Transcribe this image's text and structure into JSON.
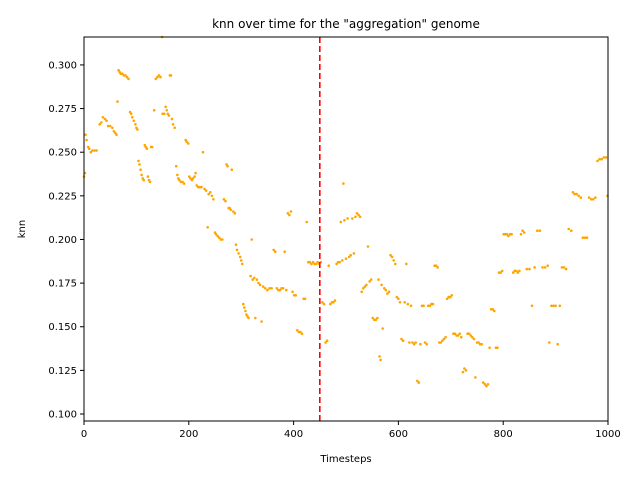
{
  "chart_data": {
    "type": "scatter",
    "title": "knn over time for the \"aggregation\" genome",
    "xlabel": "Timesteps",
    "ylabel": "knn",
    "xlim": [
      0,
      1000
    ],
    "ylim": [
      0.096,
      0.316
    ],
    "xticks": [
      "0",
      "200",
      "400",
      "600",
      "800",
      "1000"
    ],
    "yticks": [
      "0.100",
      "0.125",
      "0.150",
      "0.175",
      "0.200",
      "0.225",
      "0.250",
      "0.275",
      "0.300"
    ],
    "grid": false,
    "marker_color": "#ffa500",
    "vline": {
      "x": 450,
      "color": "#ff0000",
      "style": "dashed"
    },
    "points": [
      [
        0,
        0.236
      ],
      [
        2,
        0.238
      ],
      [
        3,
        0.26
      ],
      [
        5,
        0.257
      ],
      [
        8,
        0.253
      ],
      [
        10,
        0.252
      ],
      [
        13,
        0.25
      ],
      [
        16,
        0.251
      ],
      [
        20,
        0.251
      ],
      [
        24,
        0.251
      ],
      [
        30,
        0.266
      ],
      [
        33,
        0.267
      ],
      [
        36,
        0.27
      ],
      [
        40,
        0.269
      ],
      [
        43,
        0.268
      ],
      [
        46,
        0.265
      ],
      [
        50,
        0.265
      ],
      [
        54,
        0.264
      ],
      [
        57,
        0.262
      ],
      [
        60,
        0.261
      ],
      [
        62,
        0.26
      ],
      [
        64,
        0.279
      ],
      [
        66,
        0.297
      ],
      [
        68,
        0.296
      ],
      [
        70,
        0.295
      ],
      [
        73,
        0.295
      ],
      [
        76,
        0.294
      ],
      [
        79,
        0.294
      ],
      [
        82,
        0.293
      ],
      [
        85,
        0.292
      ],
      [
        88,
        0.273
      ],
      [
        90,
        0.272
      ],
      [
        92,
        0.27
      ],
      [
        95,
        0.268
      ],
      [
        98,
        0.266
      ],
      [
        100,
        0.264
      ],
      [
        102,
        0.263
      ],
      [
        104,
        0.245
      ],
      [
        106,
        0.243
      ],
      [
        108,
        0.24
      ],
      [
        110,
        0.237
      ],
      [
        112,
        0.235
      ],
      [
        114,
        0.234
      ],
      [
        116,
        0.254
      ],
      [
        118,
        0.253
      ],
      [
        120,
        0.252
      ],
      [
        122,
        0.236
      ],
      [
        124,
        0.234
      ],
      [
        126,
        0.233
      ],
      [
        128,
        0.253
      ],
      [
        130,
        0.253
      ],
      [
        134,
        0.274
      ],
      [
        137,
        0.292
      ],
      [
        140,
        0.293
      ],
      [
        143,
        0.294
      ],
      [
        146,
        0.293
      ],
      [
        149,
        0.316
      ],
      [
        150,
        0.272
      ],
      [
        153,
        0.272
      ],
      [
        156,
        0.276
      ],
      [
        158,
        0.274
      ],
      [
        160,
        0.272
      ],
      [
        162,
        0.271
      ],
      [
        164,
        0.294
      ],
      [
        166,
        0.294
      ],
      [
        168,
        0.269
      ],
      [
        170,
        0.266
      ],
      [
        173,
        0.264
      ],
      [
        176,
        0.242
      ],
      [
        178,
        0.237
      ],
      [
        180,
        0.235
      ],
      [
        182,
        0.234
      ],
      [
        185,
        0.233
      ],
      [
        188,
        0.233
      ],
      [
        191,
        0.232
      ],
      [
        194,
        0.257
      ],
      [
        196,
        0.256
      ],
      [
        199,
        0.255
      ],
      [
        201,
        0.236
      ],
      [
        203,
        0.235
      ],
      [
        206,
        0.234
      ],
      [
        208,
        0.235
      ],
      [
        211,
        0.236
      ],
      [
        213,
        0.238
      ],
      [
        215,
        0.231
      ],
      [
        218,
        0.23
      ],
      [
        221,
        0.23
      ],
      [
        224,
        0.23
      ],
      [
        227,
        0.25
      ],
      [
        230,
        0.229
      ],
      [
        233,
        0.228
      ],
      [
        236,
        0.207
      ],
      [
        238,
        0.226
      ],
      [
        241,
        0.227
      ],
      [
        244,
        0.225
      ],
      [
        247,
        0.223
      ],
      [
        250,
        0.204
      ],
      [
        252,
        0.203
      ],
      [
        255,
        0.202
      ],
      [
        258,
        0.201
      ],
      [
        261,
        0.2
      ],
      [
        264,
        0.2
      ],
      [
        267,
        0.223
      ],
      [
        270,
        0.222
      ],
      [
        272,
        0.243
      ],
      [
        274,
        0.242
      ],
      [
        276,
        0.218
      ],
      [
        278,
        0.218
      ],
      [
        280,
        0.217
      ],
      [
        282,
        0.24
      ],
      [
        285,
        0.216
      ],
      [
        288,
        0.215
      ],
      [
        290,
        0.197
      ],
      [
        292,
        0.194
      ],
      [
        295,
        0.192
      ],
      [
        298,
        0.19
      ],
      [
        300,
        0.188
      ],
      [
        302,
        0.186
      ],
      [
        304,
        0.163
      ],
      [
        306,
        0.161
      ],
      [
        308,
        0.159
      ],
      [
        310,
        0.157
      ],
      [
        312,
        0.156
      ],
      [
        314,
        0.155
      ],
      [
        318,
        0.179
      ],
      [
        320,
        0.2
      ],
      [
        322,
        0.177
      ],
      [
        325,
        0.178
      ],
      [
        327,
        0.155
      ],
      [
        330,
        0.177
      ],
      [
        333,
        0.175
      ],
      [
        336,
        0.174
      ],
      [
        339,
        0.153
      ],
      [
        342,
        0.173
      ],
      [
        346,
        0.172
      ],
      [
        350,
        0.171
      ],
      [
        354,
        0.172
      ],
      [
        358,
        0.172
      ],
      [
        362,
        0.194
      ],
      [
        365,
        0.193
      ],
      [
        368,
        0.172
      ],
      [
        371,
        0.171
      ],
      [
        374,
        0.171
      ],
      [
        377,
        0.172
      ],
      [
        380,
        0.172
      ],
      [
        383,
        0.193
      ],
      [
        386,
        0.171
      ],
      [
        389,
        0.215
      ],
      [
        392,
        0.214
      ],
      [
        395,
        0.216
      ],
      [
        398,
        0.17
      ],
      [
        401,
        0.168
      ],
      [
        404,
        0.168
      ],
      [
        407,
        0.148
      ],
      [
        410,
        0.147
      ],
      [
        413,
        0.147
      ],
      [
        416,
        0.146
      ],
      [
        419,
        0.166
      ],
      [
        422,
        0.166
      ],
      [
        425,
        0.21
      ],
      [
        428,
        0.187
      ],
      [
        431,
        0.187
      ],
      [
        434,
        0.186
      ],
      [
        437,
        0.187
      ],
      [
        440,
        0.186
      ],
      [
        443,
        0.186
      ],
      [
        446,
        0.187
      ],
      [
        449,
        0.186
      ],
      [
        452,
        0.187
      ],
      [
        455,
        0.164
      ],
      [
        458,
        0.163
      ],
      [
        461,
        0.141
      ],
      [
        464,
        0.142
      ],
      [
        467,
        0.185
      ],
      [
        470,
        0.163
      ],
      [
        473,
        0.164
      ],
      [
        476,
        0.164
      ],
      [
        479,
        0.165
      ],
      [
        482,
        0.186
      ],
      [
        485,
        0.187
      ],
      [
        488,
        0.187
      ],
      [
        490,
        0.21
      ],
      [
        493,
        0.188
      ],
      [
        495,
        0.232
      ],
      [
        497,
        0.211
      ],
      [
        500,
        0.189
      ],
      [
        503,
        0.212
      ],
      [
        506,
        0.19
      ],
      [
        509,
        0.191
      ],
      [
        512,
        0.212
      ],
      [
        515,
        0.192
      ],
      [
        518,
        0.213
      ],
      [
        521,
        0.215
      ],
      [
        524,
        0.214
      ],
      [
        527,
        0.213
      ],
      [
        530,
        0.17
      ],
      [
        533,
        0.172
      ],
      [
        536,
        0.173
      ],
      [
        539,
        0.174
      ],
      [
        542,
        0.196
      ],
      [
        545,
        0.176
      ],
      [
        548,
        0.177
      ],
      [
        551,
        0.155
      ],
      [
        554,
        0.154
      ],
      [
        557,
        0.154
      ],
      [
        560,
        0.155
      ],
      [
        562,
        0.177
      ],
      [
        564,
        0.133
      ],
      [
        566,
        0.131
      ],
      [
        568,
        0.174
      ],
      [
        570,
        0.149
      ],
      [
        573,
        0.172
      ],
      [
        576,
        0.171
      ],
      [
        579,
        0.169
      ],
      [
        582,
        0.17
      ],
      [
        585,
        0.191
      ],
      [
        588,
        0.19
      ],
      [
        591,
        0.188
      ],
      [
        594,
        0.186
      ],
      [
        597,
        0.167
      ],
      [
        600,
        0.166
      ],
      [
        603,
        0.164
      ],
      [
        606,
        0.143
      ],
      [
        609,
        0.142
      ],
      [
        612,
        0.164
      ],
      [
        615,
        0.186
      ],
      [
        618,
        0.163
      ],
      [
        621,
        0.141
      ],
      [
        624,
        0.162
      ],
      [
        627,
        0.141
      ],
      [
        630,
        0.14
      ],
      [
        633,
        0.141
      ],
      [
        636,
        0.119
      ],
      [
        639,
        0.118
      ],
      [
        642,
        0.14
      ],
      [
        645,
        0.162
      ],
      [
        648,
        0.162
      ],
      [
        651,
        0.141
      ],
      [
        654,
        0.14
      ],
      [
        657,
        0.162
      ],
      [
        660,
        0.162
      ],
      [
        663,
        0.163
      ],
      [
        666,
        0.163
      ],
      [
        669,
        0.185
      ],
      [
        672,
        0.185
      ],
      [
        675,
        0.184
      ],
      [
        678,
        0.141
      ],
      [
        681,
        0.141
      ],
      [
        684,
        0.142
      ],
      [
        687,
        0.143
      ],
      [
        690,
        0.144
      ],
      [
        693,
        0.166
      ],
      [
        696,
        0.167
      ],
      [
        699,
        0.167
      ],
      [
        702,
        0.168
      ],
      [
        705,
        0.146
      ],
      [
        708,
        0.146
      ],
      [
        711,
        0.145
      ],
      [
        714,
        0.145
      ],
      [
        717,
        0.146
      ],
      [
        720,
        0.144
      ],
      [
        723,
        0.124
      ],
      [
        726,
        0.126
      ],
      [
        729,
        0.125
      ],
      [
        732,
        0.146
      ],
      [
        735,
        0.146
      ],
      [
        738,
        0.145
      ],
      [
        741,
        0.144
      ],
      [
        744,
        0.143
      ],
      [
        747,
        0.121
      ],
      [
        750,
        0.141
      ],
      [
        753,
        0.141
      ],
      [
        756,
        0.14
      ],
      [
        759,
        0.14
      ],
      [
        762,
        0.118
      ],
      [
        765,
        0.117
      ],
      [
        768,
        0.116
      ],
      [
        771,
        0.117
      ],
      [
        774,
        0.138
      ],
      [
        777,
        0.16
      ],
      [
        780,
        0.16
      ],
      [
        783,
        0.159
      ],
      [
        786,
        0.138
      ],
      [
        789,
        0.138
      ],
      [
        792,
        0.181
      ],
      [
        795,
        0.181
      ],
      [
        798,
        0.182
      ],
      [
        801,
        0.203
      ],
      [
        804,
        0.203
      ],
      [
        807,
        0.203
      ],
      [
        810,
        0.202
      ],
      [
        813,
        0.203
      ],
      [
        816,
        0.203
      ],
      [
        819,
        0.181
      ],
      [
        822,
        0.182
      ],
      [
        825,
        0.182
      ],
      [
        828,
        0.181
      ],
      [
        831,
        0.182
      ],
      [
        834,
        0.203
      ],
      [
        837,
        0.205
      ],
      [
        840,
        0.204
      ],
      [
        845,
        0.183
      ],
      [
        850,
        0.183
      ],
      [
        855,
        0.162
      ],
      [
        860,
        0.184
      ],
      [
        865,
        0.205
      ],
      [
        870,
        0.205
      ],
      [
        875,
        0.184
      ],
      [
        880,
        0.184
      ],
      [
        885,
        0.185
      ],
      [
        888,
        0.141
      ],
      [
        892,
        0.162
      ],
      [
        896,
        0.162
      ],
      [
        900,
        0.162
      ],
      [
        904,
        0.14
      ],
      [
        908,
        0.162
      ],
      [
        912,
        0.184
      ],
      [
        916,
        0.184
      ],
      [
        920,
        0.183
      ],
      [
        925,
        0.206
      ],
      [
        930,
        0.205
      ],
      [
        933,
        0.227
      ],
      [
        936,
        0.226
      ],
      [
        940,
        0.226
      ],
      [
        944,
        0.225
      ],
      [
        948,
        0.224
      ],
      [
        952,
        0.201
      ],
      [
        956,
        0.201
      ],
      [
        960,
        0.201
      ],
      [
        964,
        0.224
      ],
      [
        968,
        0.223
      ],
      [
        972,
        0.223
      ],
      [
        976,
        0.224
      ],
      [
        980,
        0.245
      ],
      [
        984,
        0.246
      ],
      [
        988,
        0.246
      ],
      [
        992,
        0.247
      ],
      [
        996,
        0.247
      ],
      [
        999,
        0.225
      ]
    ]
  }
}
